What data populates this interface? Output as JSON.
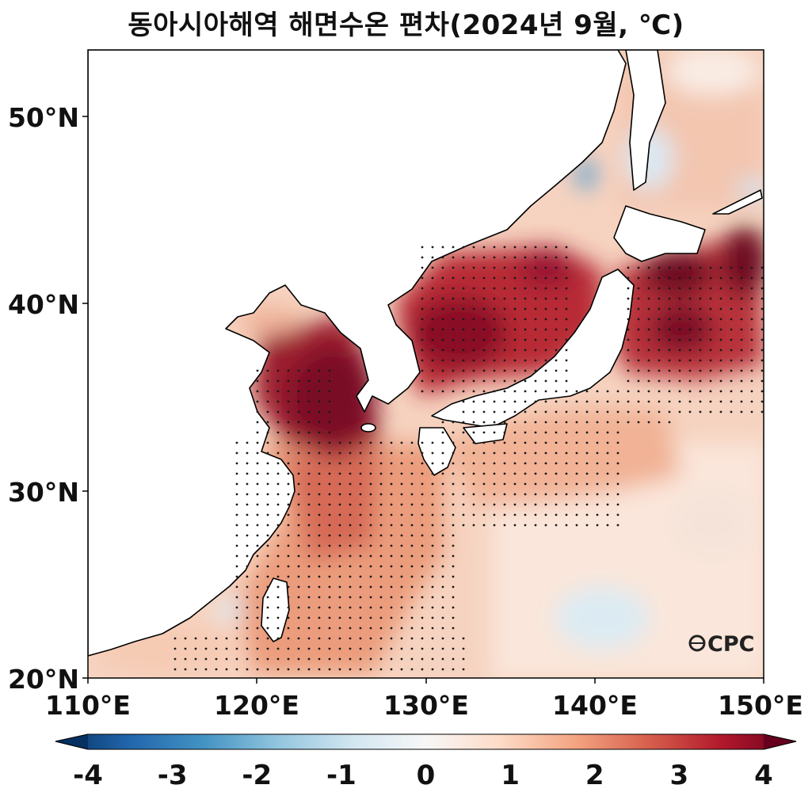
{
  "title": "동아시아해역 해면수온 편차(2024년 9월, ℃)",
  "map": {
    "lat_ticks": [
      "50°N",
      "40°N",
      "30°N",
      "20°N"
    ],
    "lon_ticks": [
      "110°E",
      "120°E",
      "130°E",
      "140°E",
      "150°E"
    ],
    "lat_range": [
      20,
      53.5
    ],
    "lon_range": [
      110,
      150
    ],
    "logo": "CPC"
  },
  "colorbar": {
    "ticks": [
      "-4",
      "-3",
      "-2",
      "-1",
      "0",
      "1",
      "2",
      "3",
      "4"
    ],
    "min": -4,
    "max": 4,
    "extend": "both",
    "colors": [
      "#053061",
      "#2166ac",
      "#4393c3",
      "#92c5de",
      "#d1e5f0",
      "#f7f7f7",
      "#fddbc7",
      "#f4a582",
      "#d6604d",
      "#b2182b",
      "#67001f"
    ]
  },
  "colors": {
    "land": "#ffffff",
    "coast": "#000000",
    "significance_dots": "#1a1a1a"
  }
}
